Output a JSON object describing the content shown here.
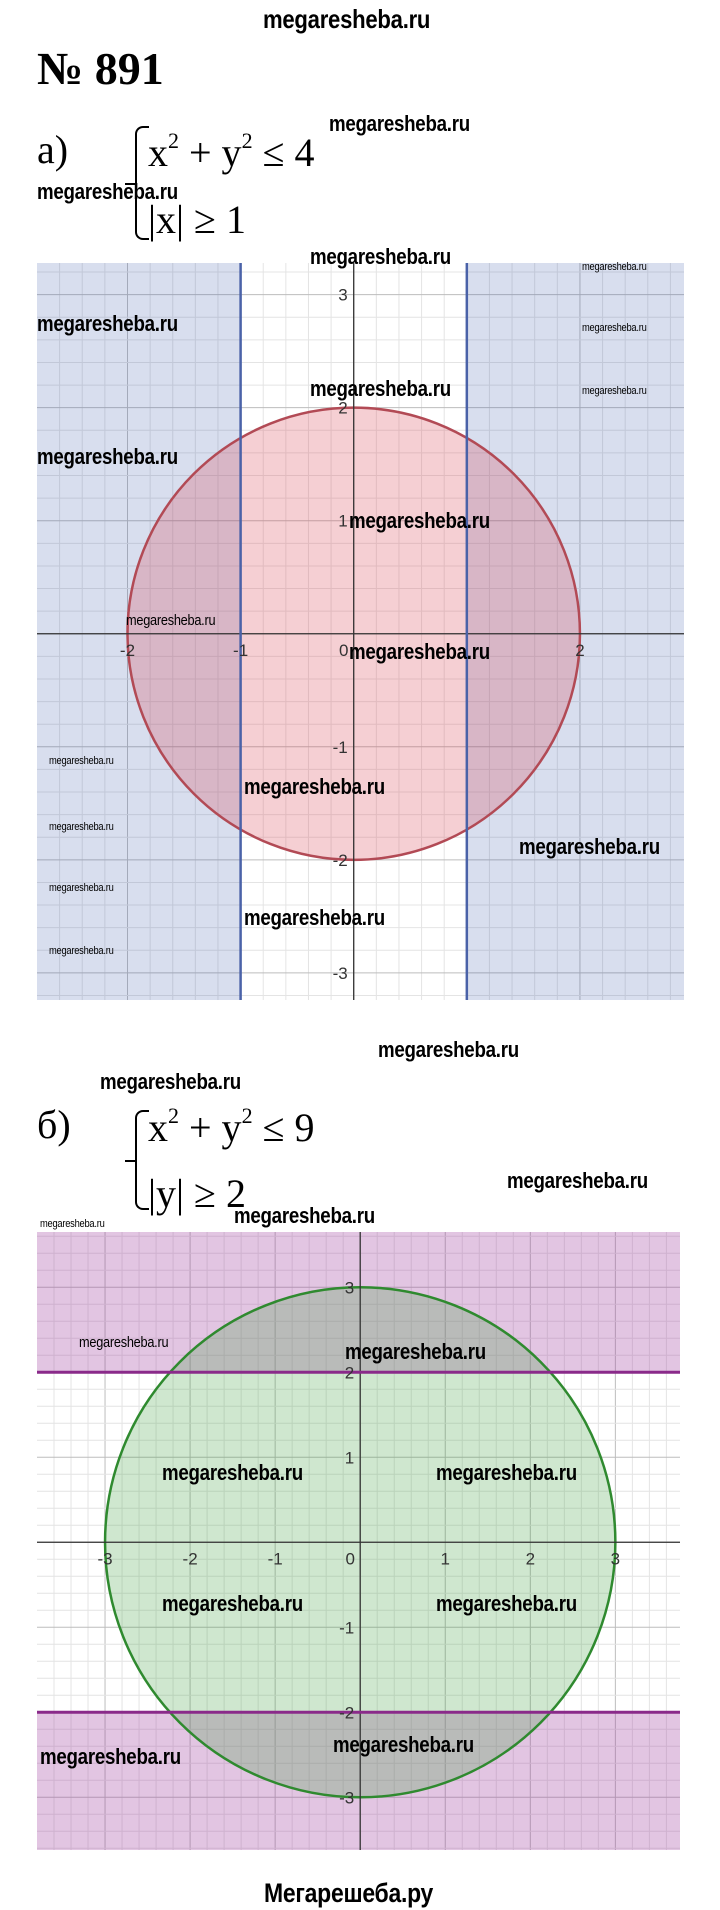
{
  "header_watermark": "megaresheba.ru",
  "problem_number": "№ 891",
  "part_a": {
    "label": "а)",
    "eq1": {
      "base": "x",
      "sup1": "2",
      "mid": " + y",
      "sup2": "2",
      "rhs": " ≤ 4"
    },
    "eq2": "|x| ≥ 1"
  },
  "part_b": {
    "label": "б)",
    "eq1": {
      "base": "x",
      "sup1": "2",
      "mid": " + y",
      "sup2": "2",
      "rhs": " ≤ 9"
    },
    "eq2": "|y| ≥ 2"
  },
  "watermark": "megaresheba.ru",
  "footer": "Мегарешеба.ру",
  "chart_data": [
    {
      "type": "region-plot",
      "xlim": [
        -2.8,
        2.92
      ],
      "ylim": [
        -3.24,
        3.28
      ],
      "grid": true,
      "grid_minor_step": 0.2,
      "x_ticks": [
        "-2",
        "-1",
        "0",
        "2"
      ],
      "x_tick_values": [
        -2,
        -1,
        0,
        2
      ],
      "y_ticks": [
        "3",
        "2",
        "1",
        "-1",
        "-2",
        "-3"
      ],
      "y_tick_values": [
        3,
        2,
        1,
        -1,
        -2,
        -3
      ],
      "circle": {
        "radius": 2,
        "stroke": "#b24a55",
        "fill": "#d9414f"
      },
      "boundary_lines": {
        "orientation": "vertical",
        "values": [
          -1,
          1
        ],
        "stroke": "#4a62a8",
        "fill": "#3a5aa8",
        "shade": "outside"
      }
    },
    {
      "type": "region-plot",
      "xlim": [
        -3.8,
        3.76
      ],
      "ylim": [
        -3.62,
        3.65
      ],
      "grid": true,
      "grid_minor_step": 0.2,
      "x_ticks": [
        "-3",
        "-2",
        "-1",
        "0",
        "1",
        "2",
        "3"
      ],
      "x_tick_values": [
        -3,
        -2,
        -1,
        0,
        1,
        2,
        3
      ],
      "y_ticks": [
        "3",
        "2",
        "1",
        "-1",
        "-2",
        "-3"
      ],
      "y_tick_values": [
        3,
        2,
        1,
        -1,
        -2,
        -3
      ],
      "circle": {
        "radius": 3,
        "stroke": "#2f8a2f",
        "fill": "#3f9f3f"
      },
      "boundary_lines": {
        "orientation": "horizontal",
        "values": [
          -2,
          2
        ],
        "stroke": "#8a2a8a",
        "fill": "#a040a0",
        "shade": "outside"
      }
    }
  ]
}
